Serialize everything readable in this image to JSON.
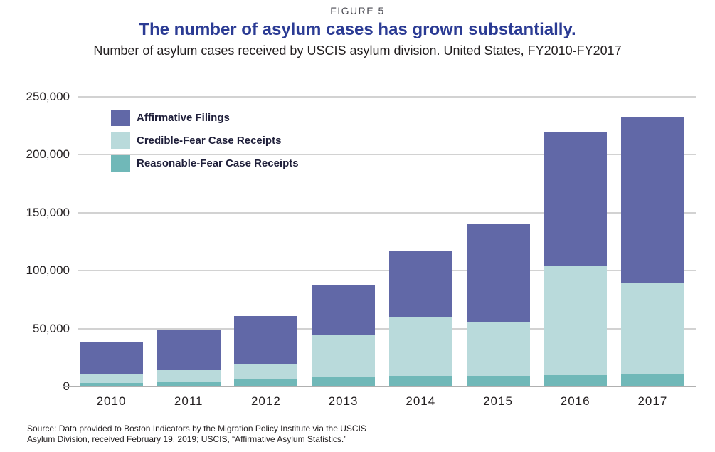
{
  "figure_label": "FIGURE 5",
  "title": "The number of asylum cases has grown substantially.",
  "subtitle": "Number of asylum cases received by USCIS asylum division. United States, FY2010-FY2017",
  "source": {
    "line1": "Source: Data provided to Boston Indicators by the Migration Policy Institute via the USCIS",
    "line2": "Asylum Division, received February 19, 2019; USCIS, “Affirmative Asylum Statistics.”"
  },
  "colors": {
    "title_text": "#2b3b94",
    "body_text": "#231f20",
    "figure_label_text": "#4a4a52",
    "gridline": "#d2d2d2",
    "axis_line": "#b0b0b0"
  },
  "chart_data": {
    "type": "bar",
    "stacked": true,
    "title": "The number of asylum cases has grown substantially.",
    "subtitle": "Number of asylum cases received by USCIS asylum division. United States, FY2010-FY2017",
    "categories": [
      "2010",
      "2011",
      "2012",
      "2013",
      "2014",
      "2015",
      "2016",
      "2017"
    ],
    "series": [
      {
        "name": "Affirmative Filings",
        "color": "#6168a7",
        "values": [
          28000,
          35000,
          42000,
          44000,
          57000,
          84000,
          116000,
          143000
        ]
      },
      {
        "name": "Credible-Fear Case Receipts",
        "color": "#b9dadb",
        "values": [
          8000,
          10000,
          13000,
          36000,
          51000,
          47000,
          94000,
          78000
        ]
      },
      {
        "name": "Reasonable-Fear Case Receipts",
        "color": "#70b8b8",
        "values": [
          3000,
          4000,
          6000,
          8000,
          9000,
          9000,
          10000,
          11000
        ]
      }
    ],
    "stack_order_bottom_to_top": [
      "Reasonable-Fear Case Receipts",
      "Credible-Fear Case Receipts",
      "Affirmative Filings"
    ],
    "totals": [
      39000,
      49000,
      61000,
      88000,
      117000,
      140000,
      220000,
      232000
    ],
    "xlabel": "",
    "ylabel": "",
    "ylim": [
      0,
      250000
    ],
    "ytick_step": 50000,
    "ytick_labels": [
      "0",
      "50,000",
      "100,000",
      "150,000",
      "200,000",
      "250,000"
    ],
    "grid": "horizontal",
    "legend_position": "upper-left-inside"
  }
}
